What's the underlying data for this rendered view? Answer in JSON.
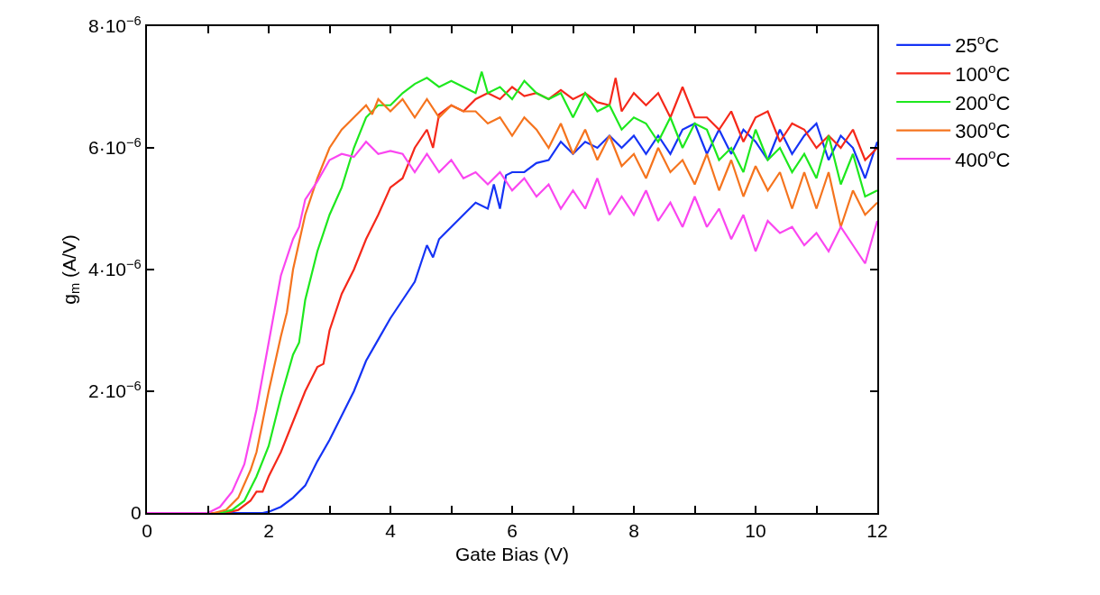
{
  "chart_data": {
    "type": "line",
    "xlabel": "Gate Bias (V)",
    "ylabel": "g$_{m}$ (A/V)",
    "xlim": [
      0,
      12
    ],
    "xticks": [
      0,
      {
        "value": 1,
        "label": null
      },
      2,
      {
        "value": 3,
        "label": null
      },
      4,
      {
        "value": 5,
        "label": null
      },
      6,
      {
        "value": 7,
        "label": null
      },
      8,
      {
        "value": 9,
        "label": null
      },
      10,
      {
        "value": 11,
        "label": null
      },
      12
    ],
    "ylim": [
      0,
      8e-06
    ],
    "yticks": [
      0,
      {
        "value": 2e-06,
        "label": "2·10$^{−6}$"
      },
      {
        "value": 4e-06,
        "label": "4·10$^{−6}$"
      },
      {
        "value": 6e-06,
        "label": "6·10$^{−6}$"
      },
      {
        "value": 8e-06,
        "label": "8·10$^{−6}$"
      }
    ],
    "legend": "top right",
    "marker": "none",
    "line_style": "solid",
    "series": [
      {
        "name": "25$^{o}$C",
        "color": "#1533f5",
        "x": [
          0,
          1.9,
          2.0,
          2.2,
          2.4,
          2.6,
          2.8,
          3.0,
          3.2,
          3.4,
          3.6,
          3.8,
          4.0,
          4.2,
          4.4,
          4.6,
          4.7,
          4.8,
          5.0,
          5.2,
          5.4,
          5.6,
          5.7,
          5.8,
          5.9,
          6.0,
          6.2,
          6.4,
          6.6,
          6.8,
          7.0,
          7.2,
          7.4,
          7.6,
          7.8,
          8.0,
          8.2,
          8.4,
          8.6,
          8.8,
          9.0,
          9.2,
          9.4,
          9.6,
          9.8,
          10.0,
          10.2,
          10.4,
          10.6,
          10.8,
          11.0,
          11.2,
          11.4,
          11.6,
          11.8,
          12.0
        ],
        "values": [
          0,
          0,
          2e-08,
          1e-07,
          2.5e-07,
          4.5e-07,
          8.5e-07,
          1.2e-06,
          1.6e-06,
          2e-06,
          2.5e-06,
          2.85e-06,
          3.2e-06,
          3.5e-06,
          3.8e-06,
          4.4e-06,
          4.2e-06,
          4.5e-06,
          4.7e-06,
          4.9e-06,
          5.1e-06,
          5e-06,
          5.4e-06,
          5e-06,
          5.55e-06,
          5.6e-06,
          5.6e-06,
          5.75e-06,
          5.8e-06,
          6.1e-06,
          5.9e-06,
          6.1e-06,
          6e-06,
          6.2e-06,
          6e-06,
          6.2e-06,
          5.9e-06,
          6.2e-06,
          5.9e-06,
          6.3e-06,
          6.4e-06,
          5.9e-06,
          6.3e-06,
          5.9e-06,
          6.3e-06,
          6.1e-06,
          5.8e-06,
          6.3e-06,
          5.9e-06,
          6.2e-06,
          6.4e-06,
          5.8e-06,
          6.2e-06,
          6e-06,
          5.5e-06,
          6.1e-06
        ]
      },
      {
        "name": "100$^{o}$C",
        "color": "#f5281a",
        "x": [
          0,
          1.3,
          1.5,
          1.7,
          1.8,
          1.9,
          2.0,
          2.2,
          2.4,
          2.6,
          2.8,
          2.9,
          3.0,
          3.2,
          3.4,
          3.6,
          3.8,
          4.0,
          4.2,
          4.4,
          4.6,
          4.7,
          4.8,
          5.0,
          5.2,
          5.4,
          5.6,
          5.8,
          6.0,
          6.2,
          6.4,
          6.6,
          6.8,
          7.0,
          7.2,
          7.4,
          7.6,
          7.7,
          7.8,
          8.0,
          8.2,
          8.4,
          8.6,
          8.8,
          9.0,
          9.2,
          9.4,
          9.6,
          9.8,
          10.0,
          10.2,
          10.4,
          10.6,
          10.8,
          11.0,
          11.2,
          11.4,
          11.6,
          11.8,
          12.0
        ],
        "values": [
          0,
          0,
          5e-08,
          2e-07,
          3.5e-07,
          3.5e-07,
          6e-07,
          1e-06,
          1.5e-06,
          2e-06,
          2.4e-06,
          2.45e-06,
          3e-06,
          3.6e-06,
          4e-06,
          4.5e-06,
          4.9e-06,
          5.35e-06,
          5.5e-06,
          6e-06,
          6.3e-06,
          6e-06,
          6.55e-06,
          6.7e-06,
          6.6e-06,
          6.8e-06,
          6.9e-06,
          6.8e-06,
          7e-06,
          6.85e-06,
          6.9e-06,
          6.8e-06,
          6.95e-06,
          6.8e-06,
          6.9e-06,
          6.75e-06,
          6.7e-06,
          7.15e-06,
          6.6e-06,
          6.9e-06,
          6.7e-06,
          6.9e-06,
          6.5e-06,
          7e-06,
          6.5e-06,
          6.5e-06,
          6.3e-06,
          6.6e-06,
          6.1e-06,
          6.5e-06,
          6.6e-06,
          6.1e-06,
          6.4e-06,
          6.3e-06,
          6e-06,
          6.2e-06,
          6e-06,
          6.3e-06,
          5.8e-06,
          6e-06
        ]
      },
      {
        "name": "200$^{o}$C",
        "color": "#1ee81e",
        "x": [
          0,
          1.2,
          1.4,
          1.6,
          1.8,
          2.0,
          2.2,
          2.4,
          2.5,
          2.6,
          2.8,
          3.0,
          3.2,
          3.4,
          3.6,
          3.8,
          4.0,
          4.2,
          4.4,
          4.6,
          4.8,
          5.0,
          5.2,
          5.4,
          5.5,
          5.6,
          5.8,
          6.0,
          6.2,
          6.4,
          6.6,
          6.8,
          7.0,
          7.2,
          7.4,
          7.6,
          7.8,
          8.0,
          8.2,
          8.4,
          8.6,
          8.8,
          9.0,
          9.2,
          9.4,
          9.6,
          9.8,
          10.0,
          10.2,
          10.4,
          10.6,
          10.8,
          11.0,
          11.2,
          11.4,
          11.6,
          11.8,
          12.0
        ],
        "values": [
          0,
          0,
          5e-08,
          2e-07,
          6e-07,
          1.1e-06,
          1.9e-06,
          2.6e-06,
          2.8e-06,
          3.5e-06,
          4.3e-06,
          4.9e-06,
          5.35e-06,
          6e-06,
          6.5e-06,
          6.7e-06,
          6.7e-06,
          6.9e-06,
          7.05e-06,
          7.15e-06,
          7e-06,
          7.1e-06,
          7e-06,
          6.9e-06,
          7.25e-06,
          6.9e-06,
          7e-06,
          6.8e-06,
          7.1e-06,
          6.9e-06,
          6.8e-06,
          6.9e-06,
          6.5e-06,
          6.9e-06,
          6.6e-06,
          6.7e-06,
          6.3e-06,
          6.5e-06,
          6.4e-06,
          6.1e-06,
          6.5e-06,
          6e-06,
          6.4e-06,
          6.3e-06,
          5.8e-06,
          6e-06,
          5.6e-06,
          6.3e-06,
          5.8e-06,
          6e-06,
          5.6e-06,
          5.9e-06,
          5.5e-06,
          6.2e-06,
          5.4e-06,
          5.9e-06,
          5.2e-06,
          5.3e-06
        ]
      },
      {
        "name": "300$^{o}$C",
        "color": "#f5741e",
        "x": [
          0,
          1.1,
          1.3,
          1.5,
          1.7,
          1.8,
          2.0,
          2.2,
          2.3,
          2.4,
          2.6,
          2.8,
          3.0,
          3.2,
          3.4,
          3.6,
          3.7,
          3.8,
          4.0,
          4.2,
          4.4,
          4.6,
          4.8,
          5.0,
          5.2,
          5.4,
          5.6,
          5.8,
          6.0,
          6.2,
          6.4,
          6.6,
          6.8,
          7.0,
          7.2,
          7.4,
          7.6,
          7.8,
          8.0,
          8.2,
          8.4,
          8.6,
          8.8,
          9.0,
          9.2,
          9.4,
          9.6,
          9.8,
          10.0,
          10.2,
          10.4,
          10.6,
          10.8,
          11.0,
          11.2,
          11.4,
          11.6,
          11.8,
          12.0
        ],
        "values": [
          0,
          0,
          5e-08,
          2.5e-07,
          7e-07,
          1e-06,
          2e-06,
          2.9e-06,
          3.3e-06,
          4e-06,
          4.9e-06,
          5.5e-06,
          6e-06,
          6.3e-06,
          6.5e-06,
          6.7e-06,
          6.55e-06,
          6.8e-06,
          6.6e-06,
          6.8e-06,
          6.5e-06,
          6.8e-06,
          6.5e-06,
          6.7e-06,
          6.6e-06,
          6.6e-06,
          6.4e-06,
          6.5e-06,
          6.2e-06,
          6.5e-06,
          6.3e-06,
          6e-06,
          6.4e-06,
          5.9e-06,
          6.3e-06,
          5.8e-06,
          6.2e-06,
          5.7e-06,
          5.9e-06,
          5.5e-06,
          6e-06,
          5.6e-06,
          5.8e-06,
          5.4e-06,
          5.9e-06,
          5.3e-06,
          5.8e-06,
          5.2e-06,
          5.7e-06,
          5.3e-06,
          5.6e-06,
          5e-06,
          5.6e-06,
          5e-06,
          5.6e-06,
          4.7e-06,
          5.3e-06,
          4.9e-06,
          5.1e-06
        ]
      },
      {
        "name": "400$^{o}$C",
        "color": "#fa46f0",
        "x": [
          0,
          1.0,
          1.2,
          1.4,
          1.6,
          1.8,
          2.0,
          2.2,
          2.4,
          2.5,
          2.6,
          2.8,
          3.0,
          3.2,
          3.4,
          3.6,
          3.8,
          4.0,
          4.2,
          4.4,
          4.6,
          4.8,
          5.0,
          5.2,
          5.4,
          5.6,
          5.8,
          6.0,
          6.2,
          6.4,
          6.6,
          6.8,
          7.0,
          7.2,
          7.4,
          7.6,
          7.8,
          8.0,
          8.2,
          8.4,
          8.6,
          8.8,
          9.0,
          9.2,
          9.4,
          9.6,
          9.8,
          10.0,
          10.2,
          10.4,
          10.6,
          10.8,
          11.0,
          11.2,
          11.4,
          11.6,
          11.8,
          12.0
        ],
        "values": [
          0,
          0,
          1e-07,
          3.5e-07,
          8e-07,
          1.7e-06,
          2.8e-06,
          3.9e-06,
          4.5e-06,
          4.7e-06,
          5.15e-06,
          5.45e-06,
          5.8e-06,
          5.9e-06,
          5.85e-06,
          6.1e-06,
          5.9e-06,
          5.95e-06,
          5.9e-06,
          5.6e-06,
          5.9e-06,
          5.6e-06,
          5.8e-06,
          5.5e-06,
          5.6e-06,
          5.4e-06,
          5.6e-06,
          5.3e-06,
          5.5e-06,
          5.2e-06,
          5.4e-06,
          5e-06,
          5.3e-06,
          5e-06,
          5.5e-06,
          4.9e-06,
          5.2e-06,
          4.9e-06,
          5.3e-06,
          4.8e-06,
          5.1e-06,
          4.7e-06,
          5.2e-06,
          4.7e-06,
          5e-06,
          4.5e-06,
          4.9e-06,
          4.3e-06,
          4.8e-06,
          4.6e-06,
          4.7e-06,
          4.4e-06,
          4.6e-06,
          4.3e-06,
          4.7e-06,
          4.4e-06,
          4.1e-06,
          4.8e-06
        ]
      }
    ]
  }
}
